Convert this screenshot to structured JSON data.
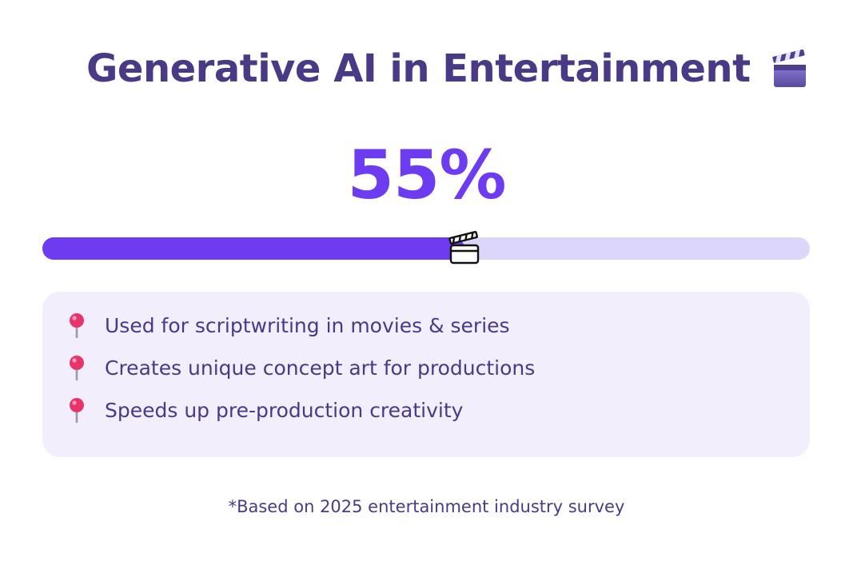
{
  "header": {
    "title": "Generative AI in Entertainment",
    "title_icon": "clapper-board-icon"
  },
  "stat": {
    "percent_label": "55%",
    "progress_fraction": 0.55,
    "progress_marker_icon": "clapper-board-icon"
  },
  "facts": {
    "bullet_icon": "round-pushpin-icon",
    "items": [
      {
        "text": "Used for scriptwriting in movies & series"
      },
      {
        "text": "Creates unique concept art for productions"
      },
      {
        "text": "Speeds up pre-production creativity"
      }
    ]
  },
  "footnote": "*Based on 2025 entertainment industry survey",
  "colors": {
    "title": "#4a3a86",
    "accent": "#6d3cf0",
    "track": "#dcd6fb",
    "panel": "#f3eefc",
    "pin": "#e8336b"
  }
}
